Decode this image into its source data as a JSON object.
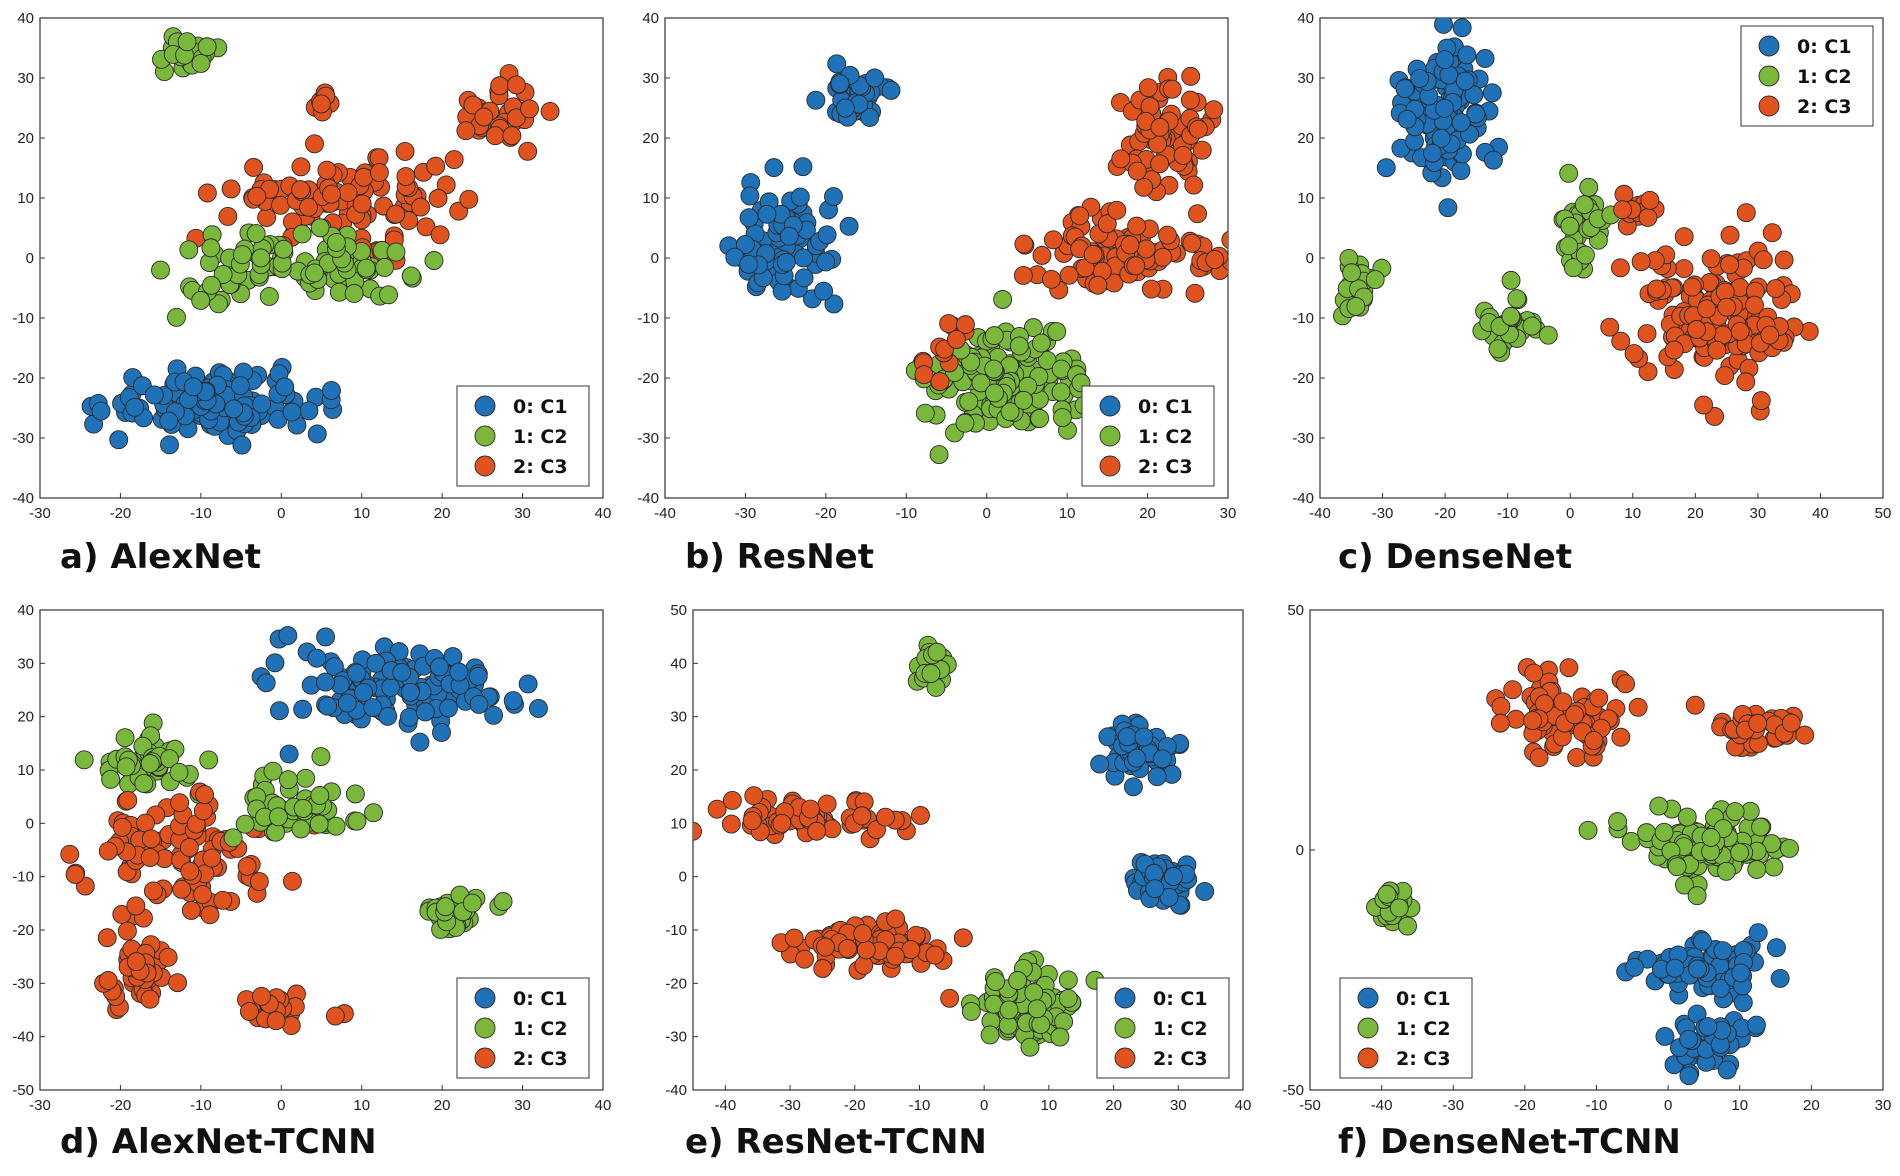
{
  "colors": {
    "C1": "#1f72b8",
    "C2": "#79b83a",
    "C3": "#e0531f",
    "edge": "#2b2b2b"
  },
  "legend": [
    {
      "key": "C1",
      "label": "0: C1"
    },
    {
      "key": "C2",
      "label": "1: C2"
    },
    {
      "key": "C3",
      "label": "2: C3"
    }
  ],
  "chart_data": [
    {
      "type": "scatter",
      "title": "a)  AlexNet",
      "xlim": [
        -30,
        40
      ],
      "ylim": [
        -40,
        40
      ],
      "xticks": [
        -30,
        -20,
        -10,
        0,
        10,
        20,
        30,
        40
      ],
      "yticks": [
        -40,
        -30,
        -20,
        -10,
        0,
        10,
        20,
        30,
        40
      ],
      "legend_position": "bottom-right",
      "clusters": [
        {
          "class": "C2",
          "center": [
            -12,
            34
          ],
          "spread": [
            4,
            3
          ],
          "n": 25
        },
        {
          "class": "C3",
          "center": [
            27,
            24
          ],
          "spread": [
            5,
            5
          ],
          "n": 35
        },
        {
          "class": "C3",
          "center": [
            5,
            26
          ],
          "spread": [
            2,
            2
          ],
          "n": 8
        },
        {
          "class": "C3",
          "center": [
            8,
            10
          ],
          "spread": [
            13,
            6
          ],
          "n": 110
        },
        {
          "class": "C2",
          "center": [
            2,
            -2
          ],
          "spread": [
            14,
            5
          ],
          "n": 100
        },
        {
          "class": "C1",
          "center": [
            -8,
            -24
          ],
          "spread": [
            12,
            5
          ],
          "n": 140
        }
      ]
    },
    {
      "type": "scatter",
      "title": "b)  ResNet",
      "xlim": [
        -40,
        30
      ],
      "ylim": [
        -40,
        40
      ],
      "xticks": [
        -40,
        -30,
        -20,
        -10,
        0,
        10,
        20,
        30
      ],
      "yticks": [
        -40,
        -30,
        -20,
        -10,
        0,
        10,
        20,
        30,
        40
      ],
      "legend_position": "bottom-right",
      "clusters": [
        {
          "class": "C1",
          "center": [
            -16,
            27
          ],
          "spread": [
            4,
            5
          ],
          "n": 40
        },
        {
          "class": "C1",
          "center": [
            -25,
            2
          ],
          "spread": [
            6,
            9
          ],
          "n": 80
        },
        {
          "class": "C3",
          "center": [
            23,
            20
          ],
          "spread": [
            5,
            9
          ],
          "n": 70
        },
        {
          "class": "C3",
          "center": [
            17,
            1
          ],
          "spread": [
            10,
            6
          ],
          "n": 100
        },
        {
          "class": "C2",
          "center": [
            2,
            -21
          ],
          "spread": [
            9,
            8
          ],
          "n": 150
        },
        {
          "class": "C3",
          "center": [
            -6,
            -16
          ],
          "spread": [
            4,
            6
          ],
          "n": 12
        }
      ]
    },
    {
      "type": "scatter",
      "title": "c)  DenseNet",
      "xlim": [
        -40,
        50
      ],
      "ylim": [
        -40,
        40
      ],
      "xticks": [
        -40,
        -30,
        -20,
        -10,
        0,
        10,
        20,
        30,
        40,
        50
      ],
      "yticks": [
        -40,
        -30,
        -20,
        -10,
        0,
        10,
        20,
        30,
        40
      ],
      "legend_position": "top-right",
      "clusters": [
        {
          "class": "C1",
          "center": [
            -21,
            24
          ],
          "spread": [
            6,
            10
          ],
          "n": 120
        },
        {
          "class": "C2",
          "center": [
            -34,
            -5
          ],
          "spread": [
            2.5,
            5
          ],
          "n": 25
        },
        {
          "class": "C2",
          "center": [
            -10,
            -12
          ],
          "spread": [
            4,
            5
          ],
          "n": 35
        },
        {
          "class": "C2",
          "center": [
            2,
            6
          ],
          "spread": [
            4,
            7
          ],
          "n": 35
        },
        {
          "class": "C3",
          "center": [
            23,
            -10
          ],
          "spread": [
            13,
            13
          ],
          "n": 150
        },
        {
          "class": "C3",
          "center": [
            10,
            8
          ],
          "spread": [
            3,
            3
          ],
          "n": 12
        }
      ]
    },
    {
      "type": "scatter",
      "title": "d)  AlexNet-TCNN",
      "xlim": [
        -30,
        40
      ],
      "ylim": [
        -50,
        40
      ],
      "xticks": [
        -30,
        -20,
        -10,
        0,
        10,
        20,
        30,
        40
      ],
      "yticks": [
        -50,
        -40,
        -30,
        -20,
        -10,
        0,
        10,
        20,
        30,
        40
      ],
      "legend_position": "bottom-right",
      "clusters": [
        {
          "class": "C1",
          "center": [
            15,
            25
          ],
          "spread": [
            14,
            7
          ],
          "n": 130
        },
        {
          "class": "C2",
          "center": [
            -17,
            12
          ],
          "spread": [
            5,
            5
          ],
          "n": 50
        },
        {
          "class": "C3",
          "center": [
            -12,
            -5
          ],
          "spread": [
            10,
            10
          ],
          "n": 100
        },
        {
          "class": "C3",
          "center": [
            -18,
            -27
          ],
          "spread": [
            4,
            8
          ],
          "n": 50
        },
        {
          "class": "C3",
          "center": [
            0,
            -35
          ],
          "spread": [
            4,
            3
          ],
          "n": 25
        },
        {
          "class": "C2",
          "center": [
            2,
            3
          ],
          "spread": [
            7,
            6
          ],
          "n": 50
        },
        {
          "class": "C2",
          "center": [
            22,
            -17
          ],
          "spread": [
            4,
            3
          ],
          "n": 30
        }
      ]
    },
    {
      "type": "scatter",
      "title": "e)  ResNet-TCNN",
      "xlim": [
        -45,
        40
      ],
      "ylim": [
        -40,
        50
      ],
      "xticks": [
        -40,
        -30,
        -20,
        -10,
        0,
        10,
        20,
        30,
        40
      ],
      "yticks": [
        -40,
        -30,
        -20,
        -10,
        0,
        10,
        20,
        30,
        40,
        50
      ],
      "legend_position": "bottom-right",
      "clusters": [
        {
          "class": "C2",
          "center": [
            -8,
            39
          ],
          "spread": [
            2,
            4
          ],
          "n": 20
        },
        {
          "class": "C1",
          "center": [
            24,
            24
          ],
          "spread": [
            5,
            5
          ],
          "n": 60
        },
        {
          "class": "C1",
          "center": [
            28,
            -1
          ],
          "spread": [
            5,
            4
          ],
          "n": 50
        },
        {
          "class": "C3",
          "center": [
            -26,
            11
          ],
          "spread": [
            13,
            3
          ],
          "n": 70
        },
        {
          "class": "C3",
          "center": [
            -18,
            -13
          ],
          "spread": [
            12,
            4
          ],
          "n": 80
        },
        {
          "class": "C2",
          "center": [
            7,
            -24
          ],
          "spread": [
            7,
            8
          ],
          "n": 80
        }
      ]
    },
    {
      "type": "scatter",
      "title": "f)  DenseNet-TCNN",
      "xlim": [
        -50,
        30
      ],
      "ylim": [
        -50,
        50
      ],
      "xticks": [
        -50,
        -40,
        -30,
        -20,
        -10,
        0,
        10,
        20,
        30
      ],
      "yticks": [
        -50,
        0,
        50
      ],
      "legend_position": "bottom-left",
      "clusters": [
        {
          "class": "C3",
          "center": [
            -15,
            28
          ],
          "spread": [
            9,
            7
          ],
          "n": 80
        },
        {
          "class": "C3",
          "center": [
            13,
            25
          ],
          "spread": [
            6,
            4
          ],
          "n": 40
        },
        {
          "class": "C2",
          "center": [
            5,
            2
          ],
          "spread": [
            9,
            6
          ],
          "n": 120
        },
        {
          "class": "C2",
          "center": [
            -38,
            -12
          ],
          "spread": [
            2.5,
            3
          ],
          "n": 25
        },
        {
          "class": "C1",
          "center": [
            5,
            -25
          ],
          "spread": [
            8,
            5
          ],
          "n": 70
        },
        {
          "class": "C1",
          "center": [
            6,
            -40
          ],
          "spread": [
            5,
            6
          ],
          "n": 50
        }
      ]
    }
  ]
}
